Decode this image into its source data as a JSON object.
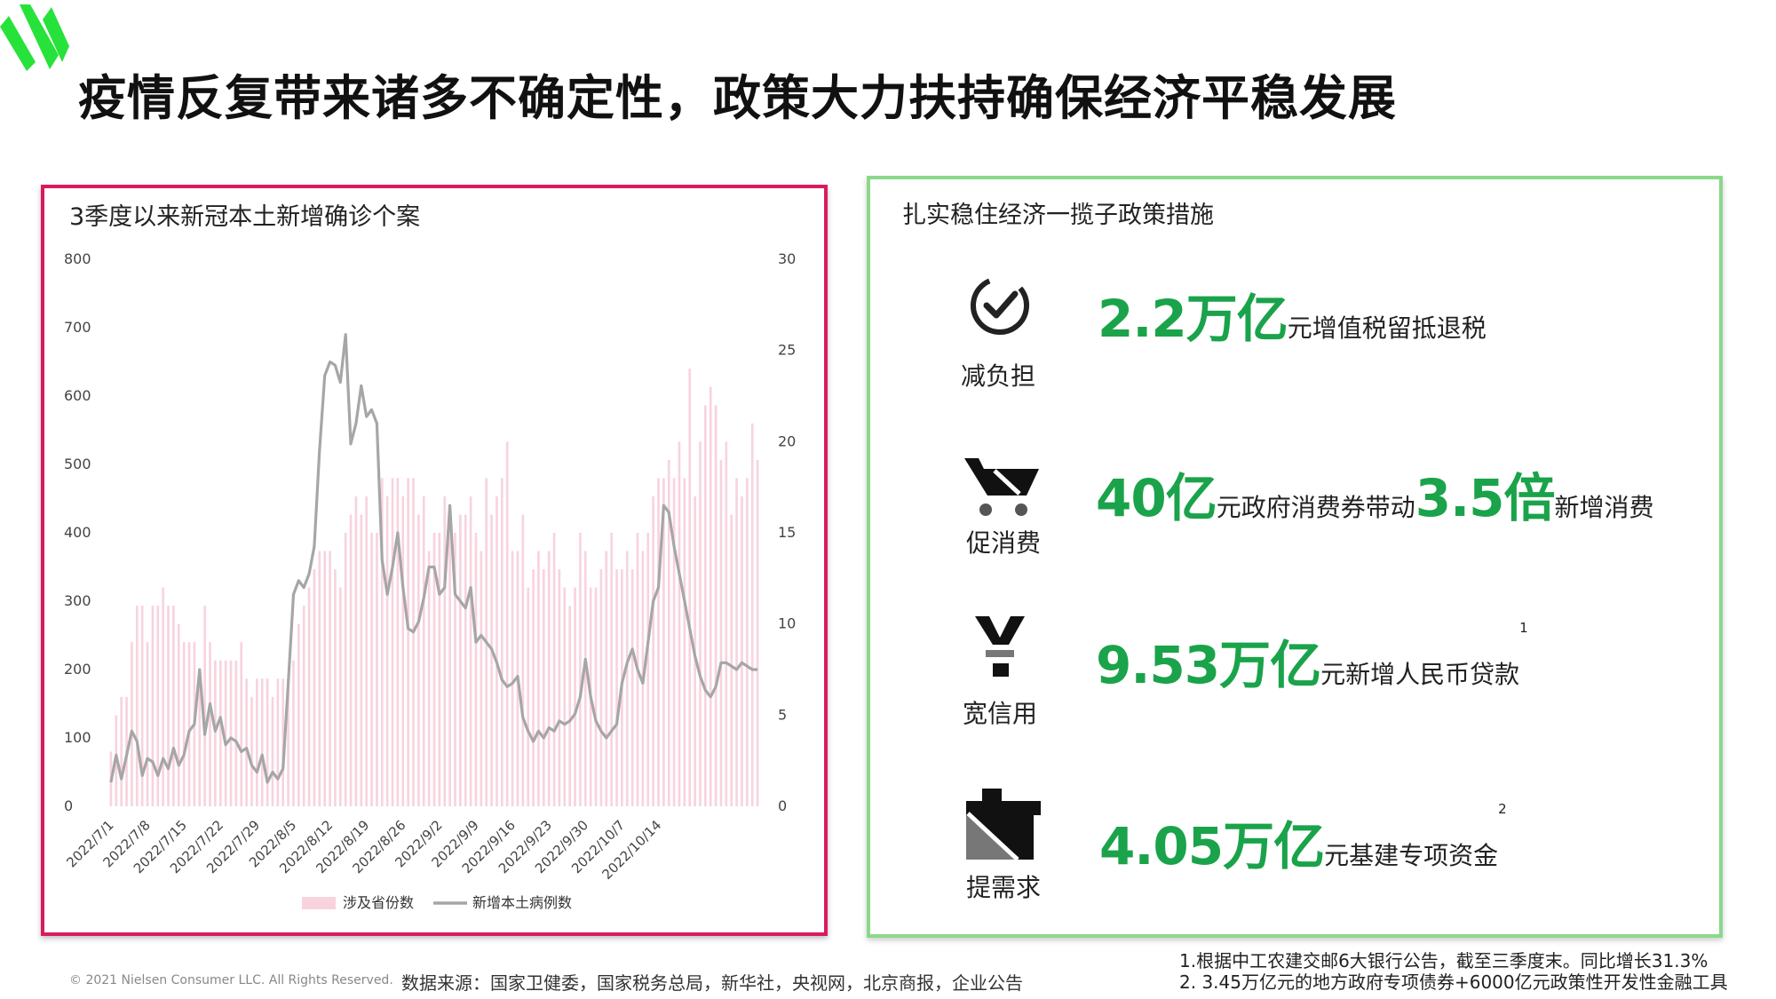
{
  "title": "疫情反复带来诸多不确定性，政策大力扶持确保经济平稳发展",
  "left_panel": {
    "title": "3季度以来新冠本土新增确诊个案"
  },
  "right_panel": {
    "title": "扎实稳住经济一揽子政策措施",
    "items": [
      {
        "icon": "reduce-burden-icon",
        "label": "减负担",
        "parts": [
          {
            "text": "2.2万亿",
            "big": true
          },
          {
            "text": "元增值税留抵退税",
            "big": false
          }
        ]
      },
      {
        "icon": "shopping-cart-icon",
        "label": "促消费",
        "parts": [
          {
            "text": "40亿",
            "big": true
          },
          {
            "text": "元政府消费券带动",
            "big": false
          },
          {
            "text": "3.5倍",
            "big": true
          },
          {
            "text": "新增消费",
            "big": false
          }
        ]
      },
      {
        "icon": "yuan-icon",
        "label": "宽信用",
        "parts": [
          {
            "text": "9.53万亿",
            "big": true
          },
          {
            "text": "元新增人民币贷款",
            "big": false
          },
          {
            "text": "1",
            "sup": true
          }
        ]
      },
      {
        "icon": "infrastructure-icon",
        "label": "提需求",
        "parts": [
          {
            "text": "4.05万亿",
            "big": true
          },
          {
            "text": "元基建专项资金",
            "big": false
          },
          {
            "text": "2",
            "sup": true
          }
        ]
      }
    ]
  },
  "footer": {
    "copyright": "© 2021 Nielsen Consumer LLC. All Rights Reserved.",
    "source": "数据来源：国家卫健委，国家税务总局，新华社，央视网，北京商报，企业公告",
    "note1": "1.根据中工农建交邮6大银行公告，截至三季度末。同比增长31.3%",
    "note2": "2. 3.45万亿元的地方政府专项债券+6000亿元政策性开发性金融工具"
  },
  "colors": {
    "accent_green": "#1aa34a",
    "left_border": "#d81b60",
    "right_border": "#8bd88b",
    "bar": "#f8d3de",
    "line": "#a6a6a6"
  },
  "chart_data": {
    "type": "bar+line",
    "title": "3季度以来新冠本土新增确诊个案",
    "x_tick_labels": [
      "2022/7/1",
      "2022/7/8",
      "2022/7/15",
      "2022/7/22",
      "2022/7/29",
      "2022/8/5",
      "2022/8/12",
      "2022/8/19",
      "2022/8/26",
      "2022/9/2",
      "2022/9/9",
      "2022/9/16",
      "2022/9/23",
      "2022/9/30",
      "2022/10/7",
      "2022/10/14"
    ],
    "start_date": "2022/7/1",
    "y_left_ticks": [
      0,
      100,
      200,
      300,
      400,
      500,
      600,
      700,
      800
    ],
    "y_right_ticks": [
      0,
      5,
      10,
      15,
      20,
      25,
      30
    ],
    "ylim_left": [
      0,
      800
    ],
    "ylim_right": [
      0,
      30
    ],
    "legend_position": "bottom",
    "series": [
      {
        "name": "涉及省份数",
        "type": "bar",
        "axis": "right",
        "values": [
          3,
          5,
          6,
          6,
          9,
          11,
          11,
          9,
          11,
          11,
          12,
          11,
          11,
          10,
          9,
          9,
          9,
          7,
          11,
          9,
          8,
          8,
          8,
          8,
          8,
          9,
          7,
          6,
          7,
          7,
          7,
          6,
          7,
          7,
          7,
          8,
          10,
          11,
          12,
          13,
          14,
          14,
          14,
          13,
          12,
          15,
          16,
          17,
          16,
          17,
          15,
          15,
          18,
          17,
          18,
          18,
          17,
          18,
          18,
          16,
          17,
          14,
          15,
          15,
          17,
          16,
          15,
          16,
          16,
          17,
          15,
          14,
          18,
          16,
          17,
          18,
          20,
          14,
          14,
          16,
          12,
          13,
          14,
          13,
          14,
          15,
          13,
          12,
          11,
          12,
          15,
          14,
          12,
          12,
          13,
          14,
          15,
          13,
          13,
          14,
          13,
          15,
          14,
          15,
          17,
          18,
          18,
          19,
          18,
          20,
          18,
          24,
          17,
          20,
          22,
          23,
          22,
          19,
          20,
          16,
          18,
          17,
          18,
          21,
          19
        ]
      },
      {
        "name": "新增本土病例数",
        "type": "line",
        "axis": "left",
        "values": [
          35,
          75,
          40,
          75,
          110,
          95,
          45,
          70,
          65,
          45,
          70,
          55,
          85,
          60,
          75,
          110,
          120,
          200,
          105,
          150,
          110,
          130,
          90,
          100,
          95,
          80,
          85,
          60,
          50,
          75,
          35,
          50,
          40,
          55,
          180,
          310,
          330,
          320,
          340,
          380,
          520,
          630,
          650,
          645,
          620,
          690,
          530,
          560,
          615,
          570,
          580,
          560,
          360,
          310,
          350,
          400,
          320,
          260,
          255,
          270,
          305,
          350,
          350,
          310,
          320,
          440,
          310,
          300,
          290,
          320,
          240,
          250,
          240,
          230,
          210,
          185,
          175,
          180,
          190,
          130,
          110,
          95,
          110,
          100,
          115,
          110,
          125,
          120,
          125,
          135,
          160,
          215,
          160,
          125,
          110,
          100,
          110,
          120,
          180,
          210,
          230,
          200,
          180,
          240,
          300,
          320,
          440,
          430,
          380,
          340,
          300,
          260,
          220,
          190,
          170,
          160,
          175,
          210,
          210,
          205,
          200,
          210,
          205,
          200,
          200
        ]
      }
    ]
  }
}
